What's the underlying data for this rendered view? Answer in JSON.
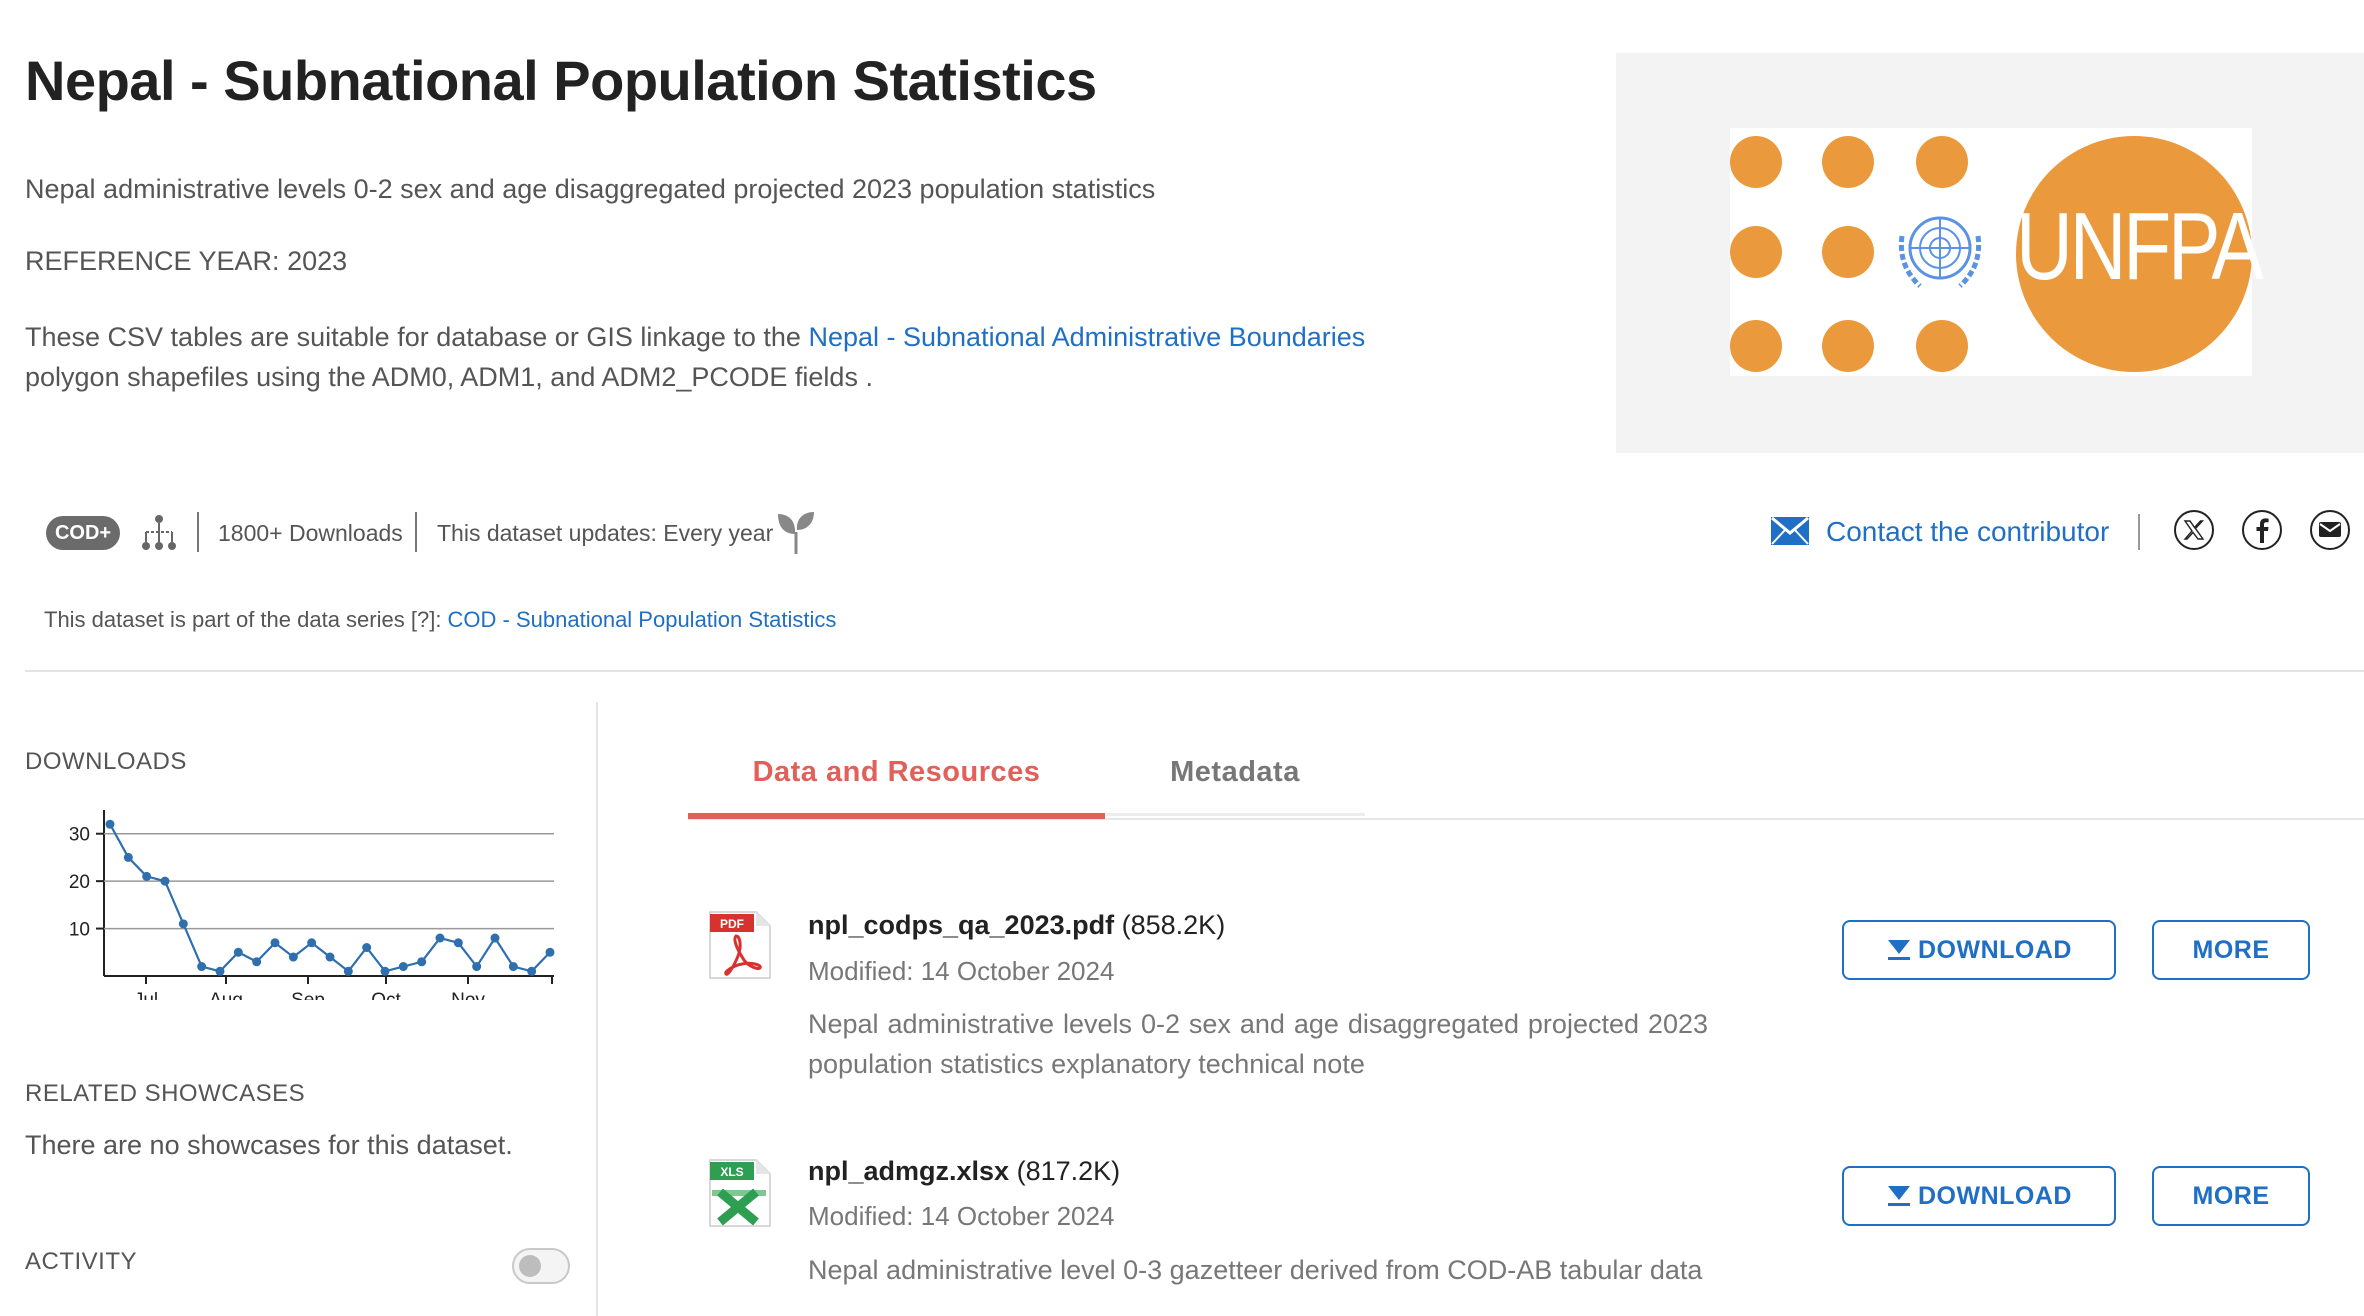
{
  "page": {
    "title": "Nepal - Subnational Population Statistics",
    "subtitle": "Nepal administrative levels 0-2 sex and age disaggregated projected 2023 population statistics",
    "reference_year": "REFERENCE YEAR: 2023",
    "description": {
      "before": "These CSV tables are suitable for database or GIS linkage to the ",
      "link": "Nepal - Subnational Administrative Boundaries",
      "after": " polygon shapefiles using the ADM0, ADM1, and ADM2_PCODE fields ."
    }
  },
  "logo": {
    "text": "UNFPA",
    "color": "#ea9a3c"
  },
  "meta_bar": {
    "badge": "COD+",
    "downloads": "1800+ Downloads",
    "update_frequency": "This dataset updates: Every year",
    "contact": "Contact the contributor",
    "icons": [
      "hierarchy-icon",
      "leaf-icon",
      "mail-icon",
      "x-icon",
      "facebook-icon",
      "email-icon"
    ]
  },
  "series": {
    "prefix": "This dataset is part of the data series [?]: ",
    "link": "COD - Subnational Population Statistics"
  },
  "sidebar": {
    "downloads_heading": "DOWNLOADS",
    "showcases_heading": "RELATED SHOWCASES",
    "showcases_empty": "There are no showcases for this dataset.",
    "activity_heading": "ACTIVITY",
    "activity_toggle_on": false
  },
  "chart_data": {
    "type": "line",
    "title": "",
    "xlabel": "",
    "ylabel": "",
    "x_tick_labels": [
      "Jul",
      "Aug",
      "Sep",
      "Oct",
      "Nov"
    ],
    "y_ticks": [
      10,
      20,
      30
    ],
    "ylim": [
      0,
      35
    ],
    "grid": true,
    "series": [
      {
        "values": [
          32,
          25,
          21,
          20,
          11,
          2,
          1,
          5,
          3,
          7,
          4,
          7,
          4,
          1,
          6,
          1,
          2,
          3,
          8,
          7,
          2,
          8,
          2,
          1,
          5
        ]
      }
    ]
  },
  "tabs": [
    {
      "label": "Data and Resources",
      "active": true
    },
    {
      "label": "Metadata",
      "active": false
    }
  ],
  "resources": [
    {
      "icon_label": "PDF",
      "name": "npl_codps_qa_2023.pdf",
      "size": "(858.2K)",
      "modified": "Modified: 14 October 2024",
      "description": "Nepal administrative levels 0-2 sex and age disaggregated projected 2023 population statistics explanatory technical note",
      "download_label": "DOWNLOAD",
      "more_label": "MORE"
    },
    {
      "icon_label": "XLS",
      "name": "npl_admgz.xlsx",
      "size": "(817.2K)",
      "modified": "Modified: 14 October 2024",
      "description": "Nepal administrative level 0-3 gazetteer derived from COD-AB tabular data",
      "download_label": "DOWNLOAD",
      "more_label": "MORE"
    }
  ],
  "colors": {
    "accent_blue": "#1f6fc5",
    "active_tab": "#e0605a",
    "chart_line": "#2f6fad"
  }
}
